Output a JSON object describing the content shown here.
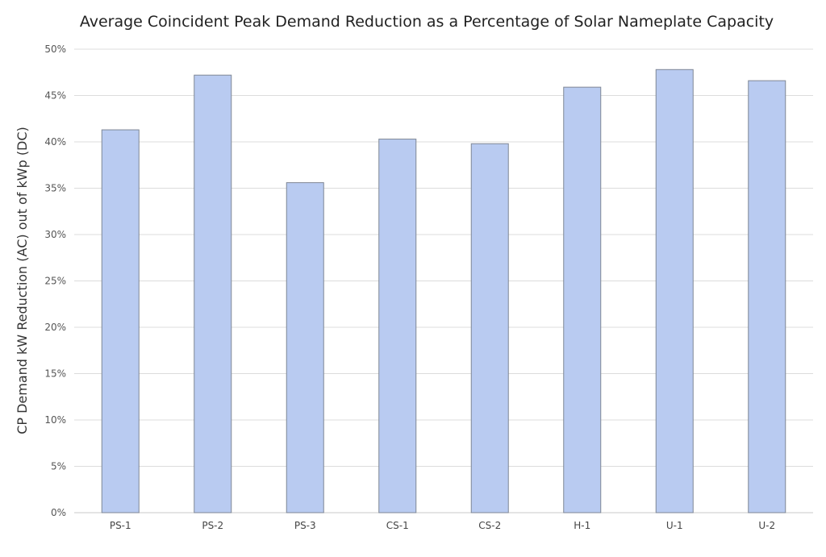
{
  "chart_data": {
    "type": "bar",
    "title": "Average Coincident Peak Demand Reduction as a Percentage of Solar Nameplate Capacity",
    "xlabel": "",
    "ylabel": "CP Demand kW Reduction (AC) out of kWp (DC)",
    "categories": [
      "PS-1",
      "PS-2",
      "PS-3",
      "CS-1",
      "CS-2",
      "H-1",
      "U-1",
      "U-2"
    ],
    "values": [
      41.3,
      47.2,
      35.6,
      40.3,
      39.8,
      45.9,
      47.8,
      46.6
    ],
    "value_unit": "%",
    "ylim": [
      0,
      50
    ],
    "y_ticks": [
      "0%",
      "5%",
      "10%",
      "15%",
      "20%",
      "25%",
      "30%",
      "35%",
      "40%",
      "45%",
      "50%"
    ],
    "grid": true,
    "legend": "none",
    "colors": {
      "bar_fill": "#b9cbf1",
      "bar_stroke": "#7f8795",
      "grid": "#dcdcdc"
    }
  }
}
